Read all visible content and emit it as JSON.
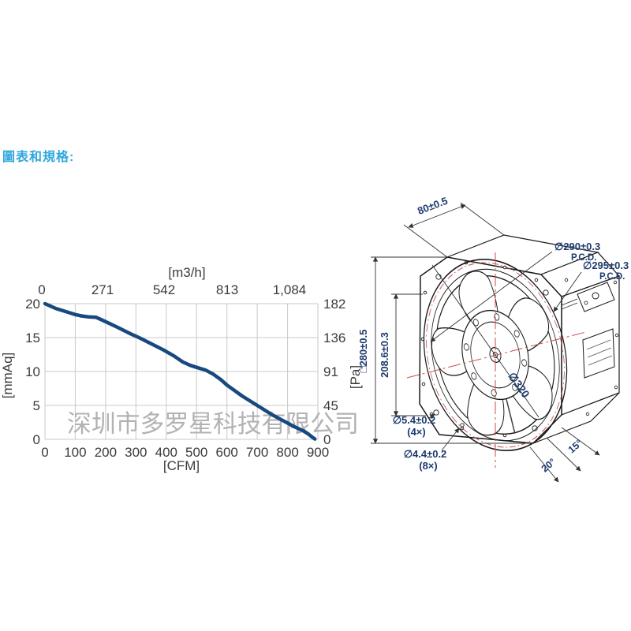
{
  "page": {
    "title": "圖表和規格:"
  },
  "watermark": "深圳市多罗星科技有限公司",
  "colors": {
    "accent_blue": "#2ea7dd",
    "curve": "#17497f",
    "dim_text": "#1e3a70",
    "grid": "#c9c9c9",
    "centerline_red": "#c94f4f",
    "watermark_gray": "#b2b2b2"
  },
  "chart_data": {
    "type": "line",
    "title": "",
    "x_bottom": {
      "label": "[CFM]",
      "range": [
        0,
        900
      ],
      "ticks": [
        "0",
        "100",
        "200",
        "300",
        "400",
        "500",
        "600",
        "700",
        "800",
        "900"
      ]
    },
    "x_top": {
      "label": "[m3/h]",
      "ticks": [
        "0",
        "271",
        "542",
        "813",
        "1,084"
      ]
    },
    "y_left": {
      "label": "[mmAq]",
      "range": [
        0,
        20
      ],
      "ticks": [
        "20",
        "15",
        "10",
        "5",
        "0"
      ]
    },
    "y_right": {
      "label": "[Pa]",
      "range": [
        0,
        182
      ],
      "ticks": [
        "182",
        "136",
        "91",
        "45",
        "0"
      ]
    },
    "grid": true,
    "legend": "none",
    "series": [
      {
        "name": "static-pressure-vs-airflow",
        "color": "#17497f",
        "points": [
          [
            0,
            20
          ],
          [
            15,
            19.7
          ],
          [
            35,
            19.3
          ],
          [
            60,
            18.95
          ],
          [
            85,
            18.6
          ],
          [
            100,
            18.4
          ],
          [
            120,
            18.2
          ],
          [
            145,
            18.05
          ],
          [
            168,
            18.0
          ],
          [
            200,
            17.35
          ],
          [
            240,
            16.5
          ],
          [
            280,
            15.6
          ],
          [
            310,
            15.0
          ],
          [
            350,
            14.1
          ],
          [
            390,
            13.2
          ],
          [
            425,
            12.3
          ],
          [
            455,
            11.4
          ],
          [
            480,
            10.9
          ],
          [
            505,
            10.55
          ],
          [
            530,
            10.2
          ],
          [
            555,
            9.6
          ],
          [
            580,
            8.8
          ],
          [
            600,
            8.0
          ],
          [
            625,
            7.2
          ],
          [
            650,
            6.4
          ],
          [
            675,
            5.7
          ],
          [
            700,
            5.0
          ],
          [
            725,
            4.3
          ],
          [
            750,
            3.6
          ],
          [
            775,
            3.0
          ],
          [
            800,
            2.4
          ],
          [
            825,
            1.8
          ],
          [
            850,
            1.3
          ],
          [
            868,
            0.8
          ],
          [
            882,
            0.3
          ],
          [
            890,
            0.05
          ]
        ]
      }
    ]
  },
  "drawing": {
    "dims": {
      "depth": "80±0.5",
      "square": "□280±0.5",
      "height": "208.6±0.3",
      "pcd1": "∅290±0.3",
      "pcd1_sub": "P.C.D.",
      "pcd2": "∅295±0.3",
      "pcd2_sub": "P.C.D.",
      "impeller": "∅320",
      "hole4": "∅5.4±0.2",
      "hole4_count": "(4×)",
      "hole8": "∅4.4±0.2",
      "hole8_count": "(8×)",
      "angle1": "20°",
      "angle2": "15°"
    }
  }
}
